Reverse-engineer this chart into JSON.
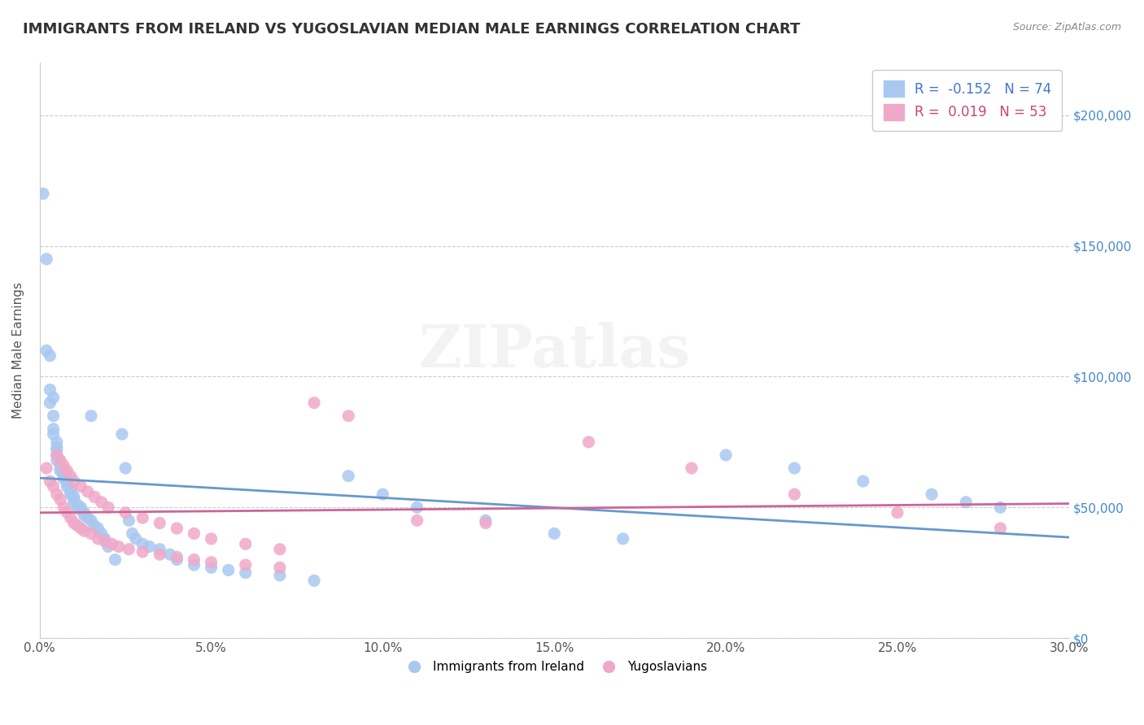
{
  "title": "IMMIGRANTS FROM IRELAND VS YUGOSLAVIAN MEDIAN MALE EARNINGS CORRELATION CHART",
  "source": "Source: ZipAtlas.com",
  "xlabel": "",
  "ylabel": "Median Male Earnings",
  "xlim": [
    0.0,
    0.3
  ],
  "ylim": [
    0,
    220000
  ],
  "yticks": [
    0,
    50000,
    100000,
    150000,
    200000
  ],
  "ytick_labels": [
    "$0",
    "$50,000",
    "$100,000",
    "$150,000",
    "$200,000"
  ],
  "xticks": [
    0.0,
    0.05,
    0.1,
    0.15,
    0.2,
    0.25,
    0.3
  ],
  "xtick_labels": [
    "0.0%",
    "5.0%",
    "10.0%",
    "15.0%",
    "20.0%",
    "25.0%",
    "30.0%"
  ],
  "ireland_color": "#a8c8f0",
  "yugo_color": "#f0a8c8",
  "ireland_R": -0.152,
  "ireland_N": 74,
  "yugo_R": 0.019,
  "yugo_N": 53,
  "ireland_line_color": "#6699cc",
  "yugo_line_color": "#cc6699",
  "background_color": "#ffffff",
  "grid_color": "#dddddd",
  "title_color": "#333333",
  "ytick_color": "#4488cc",
  "watermark": "ZIPatlas",
  "legend_label_ireland": "Immigrants from Ireland",
  "legend_label_yugo": "Yugoslavians",
  "ireland_x": [
    0.001,
    0.002,
    0.002,
    0.003,
    0.003,
    0.003,
    0.004,
    0.004,
    0.004,
    0.004,
    0.005,
    0.005,
    0.005,
    0.005,
    0.005,
    0.006,
    0.006,
    0.006,
    0.007,
    0.007,
    0.007,
    0.008,
    0.008,
    0.008,
    0.008,
    0.009,
    0.009,
    0.009,
    0.01,
    0.01,
    0.01,
    0.011,
    0.011,
    0.012,
    0.012,
    0.013,
    0.013,
    0.014,
    0.015,
    0.015,
    0.016,
    0.017,
    0.018,
    0.019,
    0.02,
    0.022,
    0.024,
    0.025,
    0.026,
    0.027,
    0.028,
    0.03,
    0.032,
    0.035,
    0.038,
    0.04,
    0.045,
    0.05,
    0.055,
    0.06,
    0.07,
    0.08,
    0.09,
    0.1,
    0.11,
    0.13,
    0.15,
    0.17,
    0.2,
    0.22,
    0.24,
    0.26,
    0.27,
    0.28
  ],
  "ireland_y": [
    170000,
    145000,
    110000,
    108000,
    95000,
    90000,
    92000,
    85000,
    80000,
    78000,
    75000,
    73000,
    72000,
    70000,
    68000,
    67000,
    65000,
    64000,
    63000,
    62000,
    61000,
    60000,
    60000,
    59000,
    58000,
    57000,
    56000,
    55000,
    54000,
    53000,
    52000,
    51000,
    50000,
    50000,
    49000,
    48000,
    47000,
    46000,
    85000,
    45000,
    43000,
    42000,
    40000,
    38000,
    35000,
    30000,
    78000,
    65000,
    45000,
    40000,
    38000,
    36000,
    35000,
    34000,
    32000,
    30000,
    28000,
    27000,
    26000,
    25000,
    24000,
    22000,
    62000,
    55000,
    50000,
    45000,
    40000,
    38000,
    70000,
    65000,
    60000,
    55000,
    52000,
    50000
  ],
  "yugo_x": [
    0.002,
    0.003,
    0.004,
    0.005,
    0.006,
    0.007,
    0.008,
    0.009,
    0.01,
    0.011,
    0.012,
    0.013,
    0.015,
    0.017,
    0.019,
    0.021,
    0.023,
    0.026,
    0.03,
    0.035,
    0.04,
    0.045,
    0.05,
    0.06,
    0.07,
    0.08,
    0.09,
    0.11,
    0.13,
    0.16,
    0.19,
    0.22,
    0.25,
    0.28,
    0.005,
    0.006,
    0.007,
    0.008,
    0.009,
    0.01,
    0.012,
    0.014,
    0.016,
    0.018,
    0.02,
    0.025,
    0.03,
    0.035,
    0.04,
    0.045,
    0.05,
    0.06,
    0.07
  ],
  "yugo_y": [
    65000,
    60000,
    58000,
    55000,
    53000,
    50000,
    48000,
    46000,
    44000,
    43000,
    42000,
    41000,
    40000,
    38000,
    37000,
    36000,
    35000,
    34000,
    33000,
    32000,
    31000,
    30000,
    29000,
    28000,
    27000,
    90000,
    85000,
    45000,
    44000,
    75000,
    65000,
    55000,
    48000,
    42000,
    70000,
    68000,
    66000,
    64000,
    62000,
    60000,
    58000,
    56000,
    54000,
    52000,
    50000,
    48000,
    46000,
    44000,
    42000,
    40000,
    38000,
    36000,
    34000
  ]
}
